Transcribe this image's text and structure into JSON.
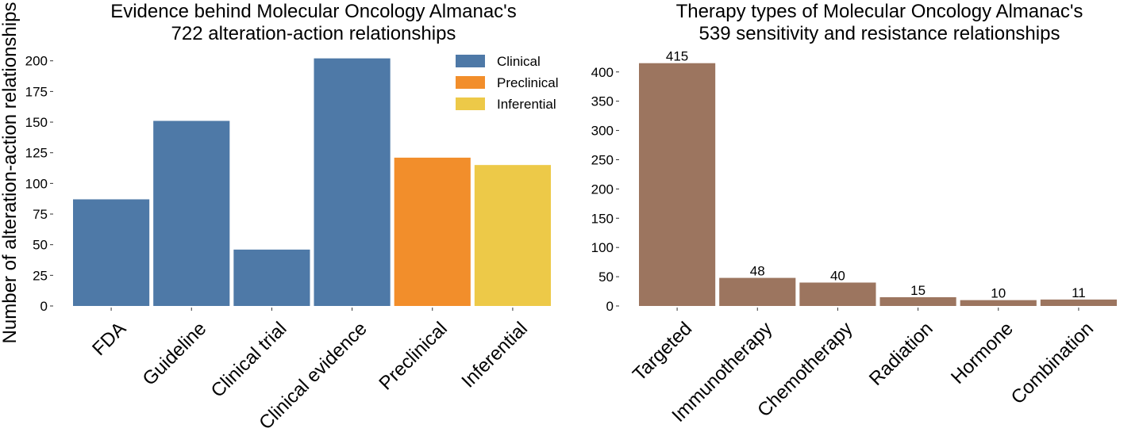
{
  "figure": {
    "ylabel": "Number of alteration-action relationships"
  },
  "chart_data": [
    {
      "type": "bar",
      "title": "Evidence behind Molecular Oncology Almanac's\n722 alteration-action relationships",
      "xlabel": "",
      "ylabel": "Number of alteration-action relationships",
      "categories": [
        "FDA",
        "Guideline",
        "Clinical trial",
        "Clinical evidence",
        "Preclinical",
        "Inferential"
      ],
      "values": [
        87,
        151,
        46,
        202,
        121,
        115
      ],
      "bar_groups": [
        "Clinical",
        "Clinical",
        "Clinical",
        "Clinical",
        "Preclinical",
        "Inferential"
      ],
      "ylim": [
        0,
        205
      ],
      "yticks": [
        0,
        25,
        50,
        75,
        100,
        125,
        150,
        175,
        200
      ],
      "grid": false,
      "legend": {
        "placement": "top-right",
        "entries": [
          {
            "name": "Clinical",
            "color": "#4e79a7"
          },
          {
            "name": "Preclinical",
            "color": "#f28e2b"
          },
          {
            "name": "Inferential",
            "color": "#edc948"
          }
        ]
      },
      "data_labels": false
    },
    {
      "type": "bar",
      "title": "Therapy types of Molecular Oncology Almanac's\n539 sensitivity and resistance relationships",
      "xlabel": "",
      "ylabel": "",
      "categories": [
        "Targeted",
        "Immunotherapy",
        "Chemotherapy",
        "Radiation",
        "Hormone",
        "Combination"
      ],
      "values": [
        415,
        48,
        40,
        15,
        10,
        11
      ],
      "color": "#9c755f",
      "ylim": [
        0,
        420
      ],
      "yticks": [
        0,
        50,
        100,
        150,
        200,
        250,
        300,
        350,
        400
      ],
      "grid": false,
      "data_labels": true
    }
  ]
}
